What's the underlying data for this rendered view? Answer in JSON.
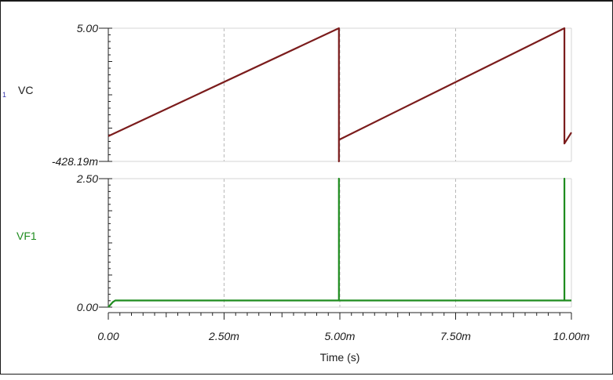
{
  "chart_data": {
    "type": "line",
    "xlabel": "Time (s)",
    "x_ticks": [
      "0.00",
      "2.50m",
      "5.00m",
      "7.50m",
      "10.00m"
    ],
    "x_tick_values": [
      0,
      0.0025,
      0.005,
      0.0075,
      0.01
    ],
    "xlim": [
      0,
      0.01
    ],
    "grid": "vertical dashed",
    "panels": [
      {
        "name": "VC",
        "row_marker": "1",
        "color": "#7b1c1c",
        "ylim": [
          -0.42819,
          5.0
        ],
        "y_ticks": [
          "5.00",
          "-428.19m"
        ],
        "y_tick_values": [
          5.0,
          -0.42819
        ],
        "points": [
          [
            0.0,
            0.6
          ],
          [
            0.00498,
            5.0
          ],
          [
            0.00498,
            -0.42819
          ],
          [
            0.00498,
            0.45
          ],
          [
            0.00985,
            5.0
          ],
          [
            0.00985,
            0.3
          ],
          [
            0.01,
            0.75
          ]
        ]
      },
      {
        "name": "VF1",
        "color": "#1e8c1e",
        "ylim": [
          0,
          2.5
        ],
        "y_ticks": [
          "2.50",
          "0.00"
        ],
        "y_tick_values": [
          2.5,
          0
        ],
        "points": [
          [
            0.0,
            0.0
          ],
          [
            0.0001,
            0.1
          ],
          [
            0.00015,
            0.13
          ],
          [
            0.00498,
            0.13
          ],
          [
            0.00498,
            2.5
          ],
          [
            0.00498,
            0.13
          ],
          [
            0.00985,
            0.13
          ],
          [
            0.00985,
            2.5
          ],
          [
            0.00985,
            0.13
          ],
          [
            0.01,
            0.13
          ]
        ]
      }
    ]
  }
}
